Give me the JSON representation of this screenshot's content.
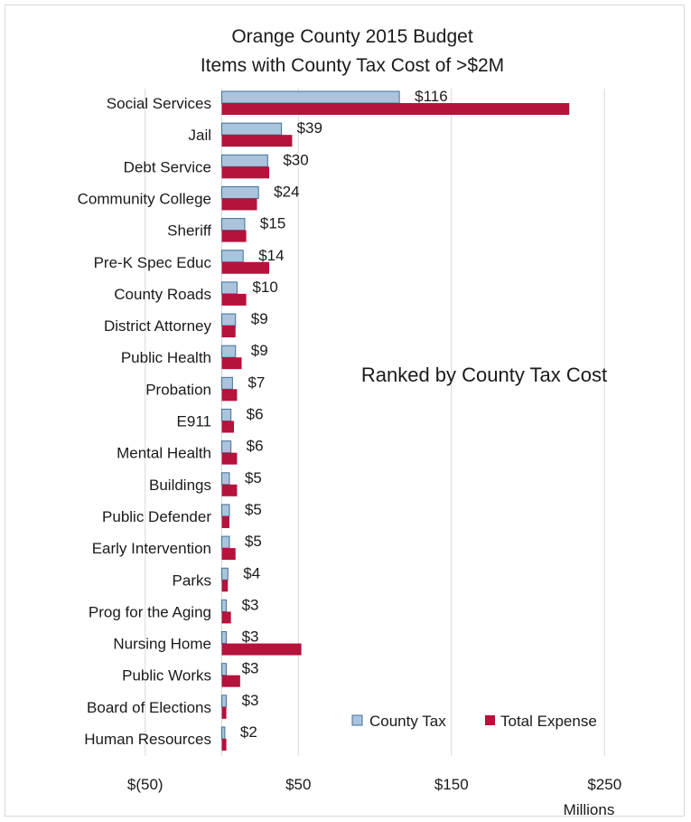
{
  "chart_data": {
    "type": "bar",
    "orientation": "horizontal",
    "title": "Orange County 2015 Budget",
    "subtitle": "Items with County Tax Cost of >$2M",
    "annotation": "Ranked by County Tax Cost",
    "xlabel": "Millions",
    "ylabel": "",
    "xlim": [
      -100,
      300
    ],
    "xticks": [
      -50,
      50,
      150,
      250
    ],
    "xtick_labels": [
      "$(50)",
      "$50",
      "$150",
      "$250"
    ],
    "grid": true,
    "legend_position": "bottom-right",
    "categories": [
      "Social Services",
      "Jail",
      "Debt Service",
      "Community College",
      "Sheriff",
      "Pre-K Spec Educ",
      "County Roads",
      "District Attorney",
      "Public Health",
      "Probation",
      "E911",
      "Mental Health",
      "Buildings",
      "Public Defender",
      "Early Intervention",
      "Parks",
      "Prog for the Aging",
      "Nursing Home",
      "Public Works",
      "Board of Elections",
      "Human Resources"
    ],
    "series": [
      {
        "name": "County Tax",
        "color": "#a9c4dc",
        "values": [
          116,
          39,
          30,
          24,
          15,
          14,
          10,
          9,
          9,
          7,
          6,
          6,
          5,
          5,
          5,
          4,
          3,
          3,
          3,
          3,
          2
        ]
      },
      {
        "name": "Total Expense",
        "color": "#b5123c",
        "values": [
          227,
          46,
          31,
          23,
          16,
          31,
          16,
          9,
          13,
          10,
          8,
          10,
          10,
          5,
          9,
          4,
          6,
          52,
          12,
          3,
          3
        ]
      }
    ],
    "data_labels": [
      "$116",
      "$39",
      "$30",
      "$24",
      "$15",
      "$14",
      "$10",
      "$9",
      "$9",
      "$7",
      "$6",
      "$6",
      "$5",
      "$5",
      "$5",
      "$4",
      "$3",
      "$3",
      "$3",
      "$3",
      "$2"
    ]
  }
}
